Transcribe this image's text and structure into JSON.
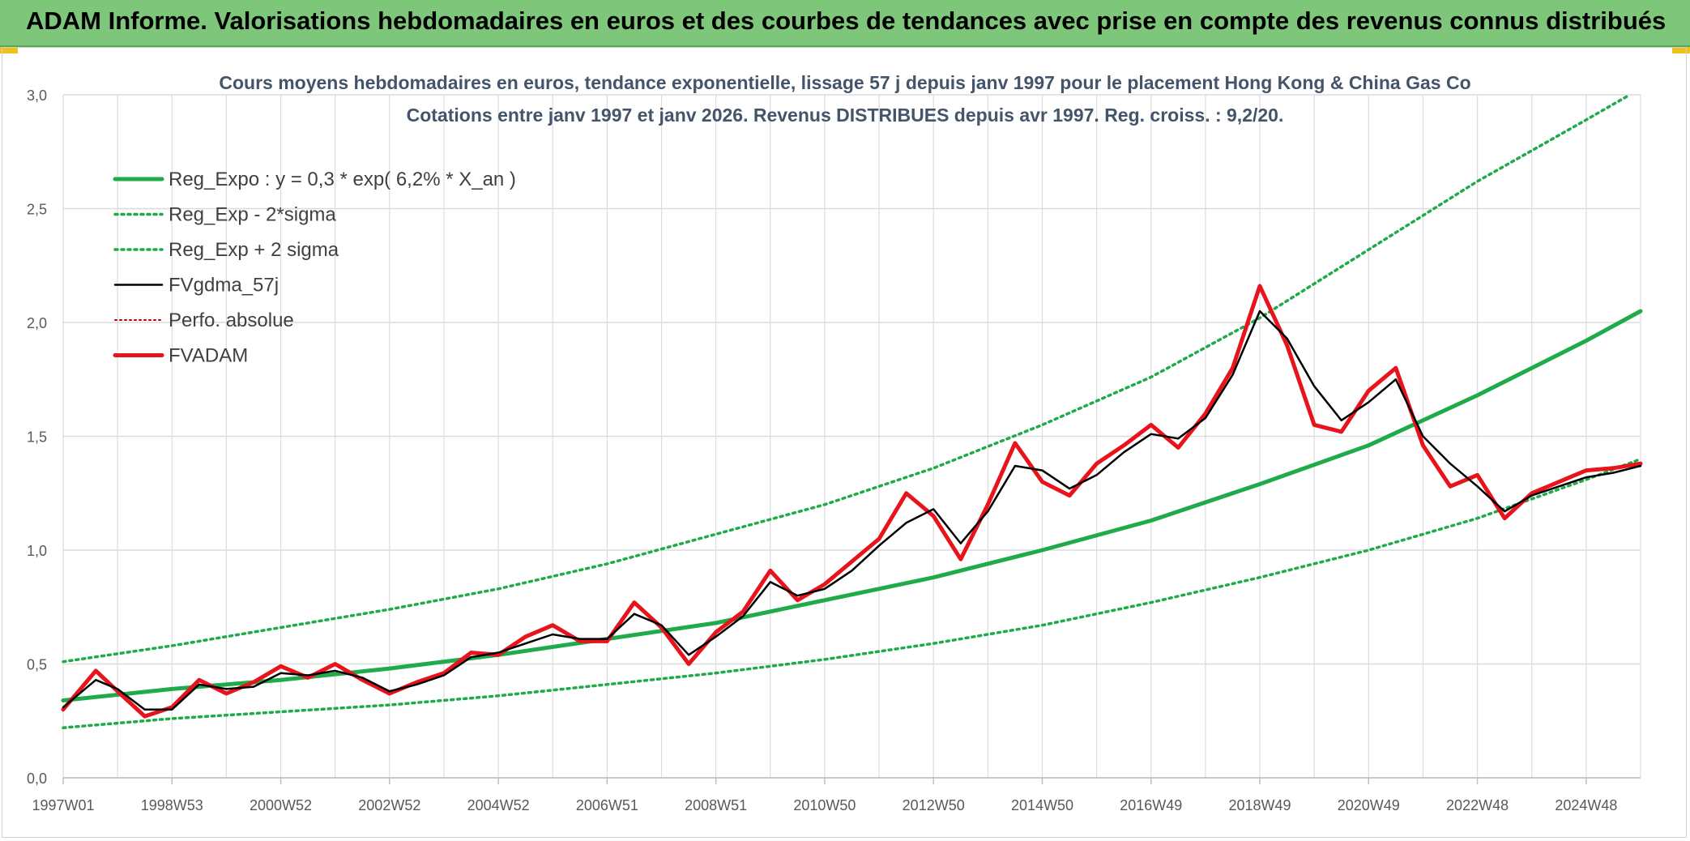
{
  "banner": {
    "title": "ADAM Informe. Valorisations hebdomadaires en euros et des courbes de tendances avec prise en compte des revenus connus distribués"
  },
  "colors": {
    "banner": "#7dc67a",
    "accent": "#f2c01a",
    "reg_expo": "#1fab49",
    "fvgdma": "#000000",
    "perfo": "#c00000",
    "fvadam": "#e8141b",
    "grid": "#dcdcdc"
  },
  "chart_data": {
    "type": "line",
    "title_line1": "Cours moyens hebdomadaires en euros, tendance exponentielle, lissage 57 j depuis janv 1997 pour le placement Hong Kong & China Gas Co",
    "title_line2": "Cotations entre janv 1997 et janv 2026. Revenus DISTRIBUES depuis avr 1997. Reg. croiss. : 9,2/20.",
    "xlabel": "",
    "ylabel": "",
    "x_range": [
      1997.0,
      2026.0
    ],
    "ylim": [
      0,
      3.0
    ],
    "grid": true,
    "legend_position": "top-left",
    "y_ticks": [
      {
        "value": 0,
        "label": "0,0"
      },
      {
        "value": 0.5,
        "label": "0,5"
      },
      {
        "value": 1.0,
        "label": "1,0"
      },
      {
        "value": 1.5,
        "label": "1,5"
      },
      {
        "value": 2.0,
        "label": "2,0"
      },
      {
        "value": 2.5,
        "label": "2,5"
      },
      {
        "value": 3.0,
        "label": "3,0"
      }
    ],
    "x_ticks": [
      {
        "label": "1997W01",
        "year": 1997.0
      },
      {
        "label": "1998W53",
        "year": 1999.0
      },
      {
        "label": "2000W52",
        "year": 2001.0
      },
      {
        "label": "2002W52",
        "year": 2003.0
      },
      {
        "label": "2004W52",
        "year": 2005.0
      },
      {
        "label": "2006W51",
        "year": 2007.0
      },
      {
        "label": "2008W51",
        "year": 2009.0
      },
      {
        "label": "2010W50",
        "year": 2011.0
      },
      {
        "label": "2012W50",
        "year": 2013.0
      },
      {
        "label": "2014W50",
        "year": 2015.0
      },
      {
        "label": "2016W49",
        "year": 2017.0
      },
      {
        "label": "2018W49",
        "year": 2019.0
      },
      {
        "label": "2020W49",
        "year": 2021.0
      },
      {
        "label": "2022W48",
        "year": 2023.0
      },
      {
        "label": "2024W48",
        "year": 2025.0
      }
    ],
    "series": [
      {
        "name": "Reg_Expo : y = 0,3 * exp( 6,2% *  X_an )",
        "style": "solid-thick",
        "color": "#1fab49",
        "x": [
          1997,
          1999,
          2001,
          2003,
          2005,
          2007,
          2009,
          2011,
          2013,
          2015,
          2017,
          2019,
          2021,
          2023,
          2025,
          2026
        ],
        "y": [
          0.34,
          0.39,
          0.43,
          0.48,
          0.54,
          0.61,
          0.68,
          0.78,
          0.88,
          1.0,
          1.13,
          1.29,
          1.46,
          1.68,
          1.92,
          2.05
        ]
      },
      {
        "name": "Reg_Exp - 2*sigma",
        "style": "dotted",
        "color": "#1fab49",
        "x": [
          1997,
          1999,
          2001,
          2003,
          2005,
          2007,
          2009,
          2011,
          2013,
          2015,
          2017,
          2019,
          2021,
          2023,
          2025,
          2026
        ],
        "y": [
          0.22,
          0.26,
          0.29,
          0.32,
          0.36,
          0.41,
          0.46,
          0.52,
          0.59,
          0.67,
          0.77,
          0.88,
          1.0,
          1.14,
          1.31,
          1.4
        ]
      },
      {
        "name": "Reg_Exp + 2 sigma",
        "style": "dotted",
        "color": "#1fab49",
        "x": [
          1997,
          1999,
          2001,
          2003,
          2005,
          2007,
          2009,
          2011,
          2013,
          2015,
          2017,
          2019,
          2021,
          2023,
          2025,
          2025.8
        ],
        "y": [
          0.51,
          0.58,
          0.66,
          0.74,
          0.83,
          0.94,
          1.07,
          1.2,
          1.36,
          1.55,
          1.76,
          2.02,
          2.32,
          2.62,
          2.89,
          3.0
        ]
      },
      {
        "name": "FVgdma_57j",
        "style": "solid-thin",
        "color": "#000000",
        "x": [
          1997.0,
          1997.6,
          1998.0,
          1998.5,
          1999.0,
          1999.5,
          2000.0,
          2000.5,
          2001.0,
          2001.5,
          2002.0,
          2002.5,
          2003.0,
          2003.5,
          2004.0,
          2004.5,
          2005.0,
          2005.5,
          2006.0,
          2006.5,
          2007.0,
          2007.5,
          2008.0,
          2008.5,
          2009.0,
          2009.5,
          2010.0,
          2010.5,
          2011.0,
          2011.5,
          2012.0,
          2012.5,
          2013.0,
          2013.5,
          2014.0,
          2014.5,
          2015.0,
          2015.5,
          2016.0,
          2016.5,
          2017.0,
          2017.5,
          2018.0,
          2018.5,
          2019.0,
          2019.5,
          2020.0,
          2020.5,
          2021.0,
          2021.5,
          2022.0,
          2022.5,
          2023.0,
          2023.5,
          2024.0,
          2024.5,
          2025.0,
          2025.5,
          2026.0
        ],
        "y": [
          0.31,
          0.43,
          0.39,
          0.3,
          0.3,
          0.41,
          0.39,
          0.4,
          0.46,
          0.45,
          0.47,
          0.44,
          0.38,
          0.41,
          0.45,
          0.53,
          0.55,
          0.59,
          0.63,
          0.61,
          0.61,
          0.72,
          0.67,
          0.54,
          0.62,
          0.71,
          0.86,
          0.8,
          0.83,
          0.91,
          1.02,
          1.12,
          1.18,
          1.03,
          1.17,
          1.37,
          1.35,
          1.27,
          1.33,
          1.43,
          1.51,
          1.49,
          1.58,
          1.77,
          2.05,
          1.93,
          1.72,
          1.57,
          1.65,
          1.75,
          1.5,
          1.38,
          1.28,
          1.17,
          1.24,
          1.28,
          1.32,
          1.34,
          1.37
        ]
      },
      {
        "name": "Perfo. absolue",
        "style": "dotted-thin",
        "color": "#c00000",
        "x": [],
        "y": []
      },
      {
        "name": "FVADAM",
        "style": "solid-thick",
        "color": "#e8141b",
        "x": [
          1997.0,
          1997.6,
          1998.0,
          1998.5,
          1999.0,
          1999.5,
          2000.0,
          2000.5,
          2001.0,
          2001.5,
          2002.0,
          2002.5,
          2003.0,
          2003.5,
          2004.0,
          2004.5,
          2005.0,
          2005.5,
          2006.0,
          2006.5,
          2007.0,
          2007.5,
          2008.0,
          2008.5,
          2009.0,
          2009.5,
          2010.0,
          2010.5,
          2011.0,
          2011.5,
          2012.0,
          2012.5,
          2013.0,
          2013.5,
          2014.0,
          2014.5,
          2015.0,
          2015.5,
          2016.0,
          2016.5,
          2017.0,
          2017.5,
          2018.0,
          2018.5,
          2019.0,
          2019.5,
          2020.0,
          2020.5,
          2021.0,
          2021.5,
          2022.0,
          2022.5,
          2023.0,
          2023.5,
          2024.0,
          2024.5,
          2025.0,
          2025.5,
          2026.0
        ],
        "y": [
          0.3,
          0.47,
          0.38,
          0.27,
          0.31,
          0.43,
          0.37,
          0.42,
          0.49,
          0.44,
          0.5,
          0.43,
          0.37,
          0.42,
          0.46,
          0.55,
          0.54,
          0.62,
          0.67,
          0.6,
          0.6,
          0.77,
          0.66,
          0.5,
          0.64,
          0.73,
          0.91,
          0.78,
          0.85,
          0.95,
          1.05,
          1.25,
          1.15,
          0.96,
          1.2,
          1.47,
          1.3,
          1.24,
          1.38,
          1.46,
          1.55,
          1.45,
          1.6,
          1.8,
          2.16,
          1.9,
          1.55,
          1.52,
          1.7,
          1.8,
          1.46,
          1.28,
          1.33,
          1.14,
          1.25,
          1.3,
          1.35,
          1.36,
          1.38
        ]
      }
    ]
  }
}
